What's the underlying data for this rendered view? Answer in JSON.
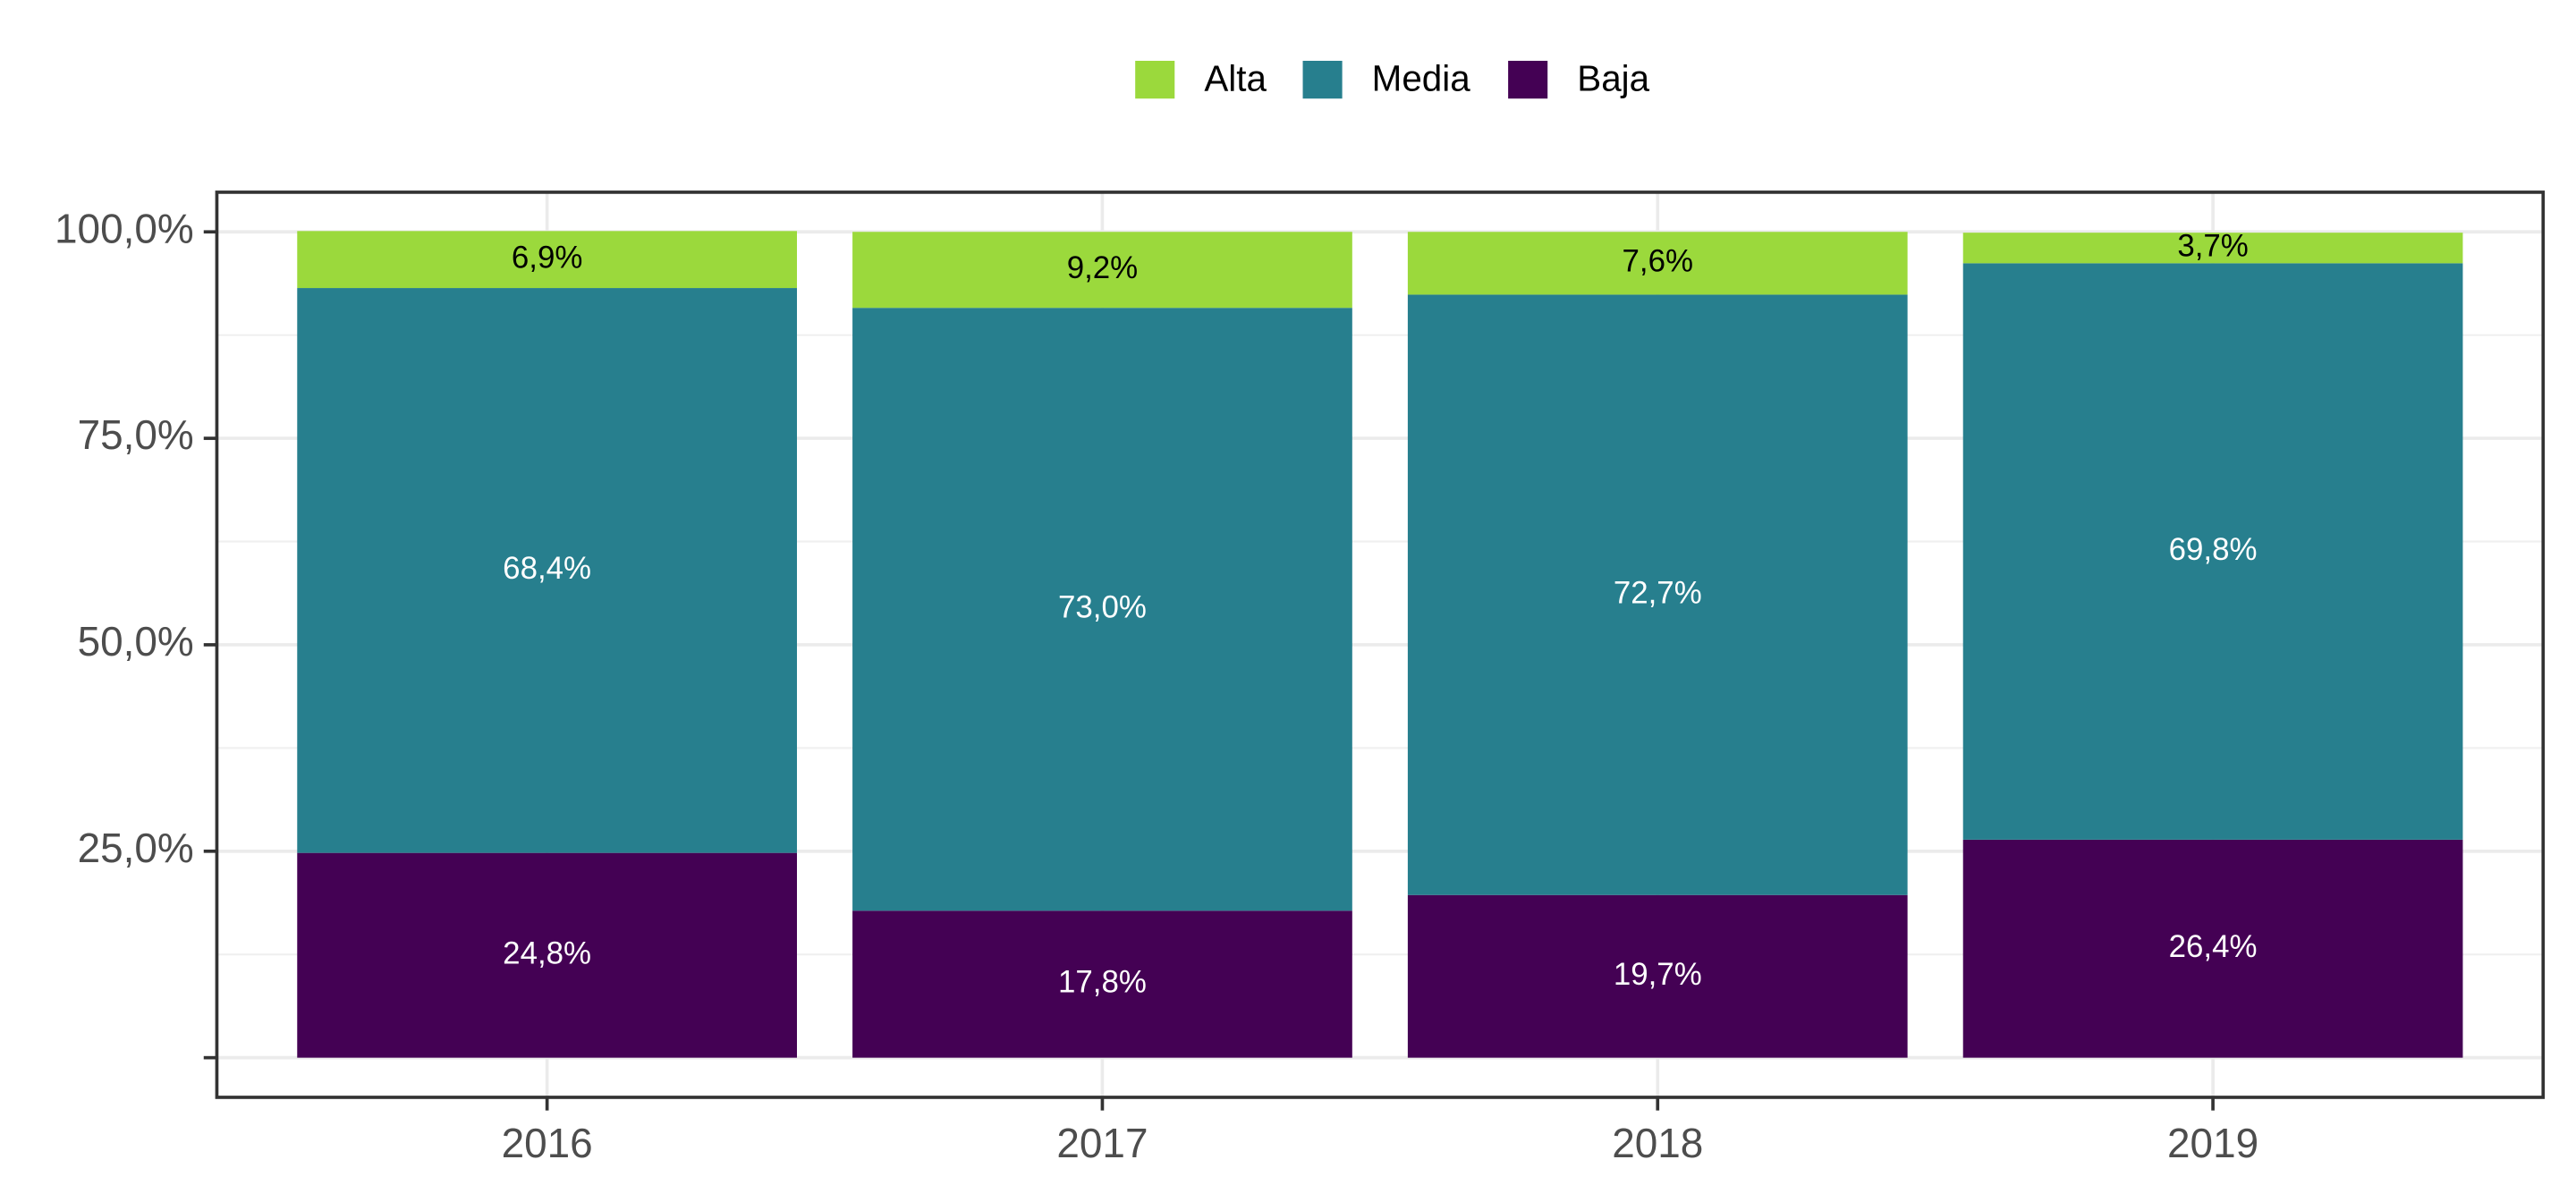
{
  "chart_data": {
    "type": "stacked_bar",
    "categories": [
      "2016",
      "2017",
      "2018",
      "2019"
    ],
    "series": [
      {
        "name": "Alta",
        "color": "#9bd93c",
        "values": [
          6.9,
          9.2,
          7.6,
          3.7
        ],
        "value_labels": [
          "6,9%",
          "9,2%",
          "7,6%",
          "3,7%"
        ]
      },
      {
        "name": "Media",
        "color": "#277f8e",
        "values": [
          68.4,
          73.0,
          72.7,
          69.8
        ],
        "value_labels": [
          "68,4%",
          "73,0%",
          "72,7%",
          "69,8%"
        ]
      },
      {
        "name": "Baja",
        "color": "#440154",
        "values": [
          24.8,
          17.8,
          19.7,
          26.4
        ],
        "value_labels": [
          "24,8%",
          "17,8%",
          "19,7%",
          "26,4%"
        ]
      }
    ],
    "ylim": [
      -4.8,
      104.8
    ],
    "yticks": [
      {
        "value": 0,
        "label": null
      },
      {
        "value": 25,
        "label": "25,0%"
      },
      {
        "value": 50,
        "label": "50,0%"
      },
      {
        "value": 75,
        "label": "75,0%"
      },
      {
        "value": 100,
        "label": "100,0%"
      }
    ],
    "grid": true,
    "legend": "top"
  }
}
